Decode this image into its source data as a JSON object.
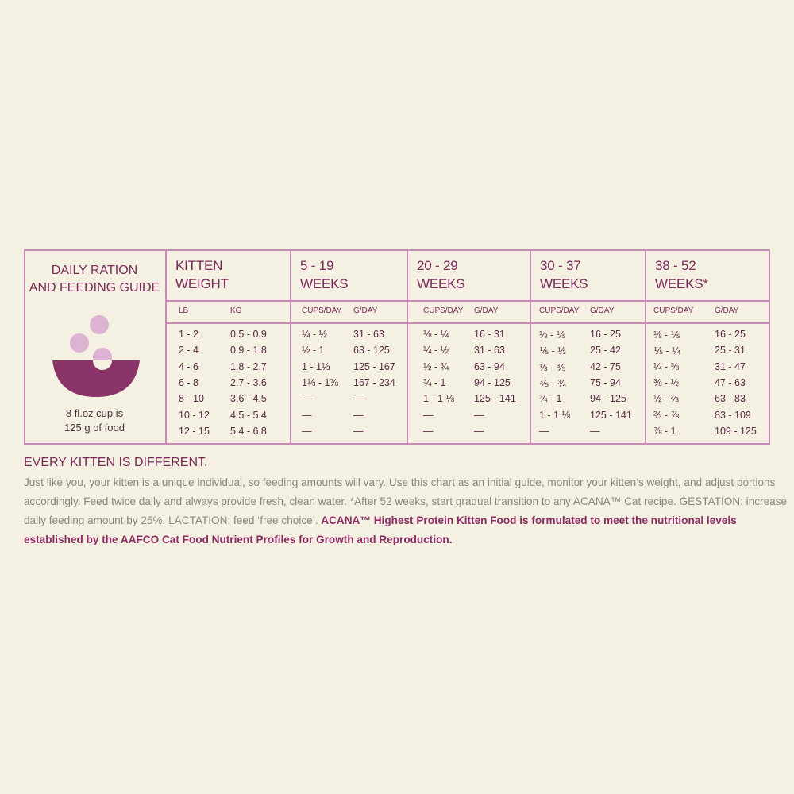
{
  "guide": {
    "title": [
      "DAILY RATION",
      "AND FEEDING GUIDE"
    ],
    "cup_note": [
      "8 fl.oz cup is",
      "125 g of food"
    ]
  },
  "groups": [
    {
      "title": [
        "KITTEN",
        "WEIGHT"
      ],
      "subheaders": [
        "LB",
        "KG"
      ],
      "columns": [
        [
          "1 - 2",
          "2 - 4",
          "4 - 6",
          "6 - 8",
          "8 - 10",
          "10 - 12",
          "12 - 15"
        ],
        [
          "0.5 - 0.9",
          "0.9 - 1.8",
          "1.8 - 2.7",
          "2.7 - 3.6",
          "3.6 - 4.5",
          "4.5 - 5.4",
          "5.4 - 6.8"
        ]
      ]
    },
    {
      "title": [
        "5 - 19",
        "WEEKS"
      ],
      "subheaders": [
        "CUPS/DAY",
        "G/DAY"
      ],
      "columns": [
        [
          "¼ - ½",
          "½ - 1",
          "1 - 1⅓",
          "1⅓ - 1⅞",
          "—",
          "—",
          "—"
        ],
        [
          "31 - 63",
          "63 - 125",
          "125 - 167",
          "167 - 234",
          "—",
          "—",
          "—"
        ]
      ]
    },
    {
      "title": [
        "20 - 29",
        "WEEKS"
      ],
      "subheaders": [
        "CUPS/DAY",
        "G/DAY"
      ],
      "columns": [
        [
          "⅛ - ¼",
          "¼ - ½",
          "½ - ¾",
          "¾ - 1",
          "1 - 1 ⅛",
          "—",
          "—"
        ],
        [
          "16 - 31",
          "31 - 63",
          "63 - 94",
          "94 - 125",
          "125 - 141",
          "—",
          "—"
        ]
      ]
    },
    {
      "title": [
        "30 - 37",
        "WEEKS"
      ],
      "subheaders": [
        "CUPS/DAY",
        "G/DAY"
      ],
      "columns": [
        [
          "⅛ - ⅕",
          "⅕ - ⅓",
          "⅓ - ⅗",
          "⅗ - ¾",
          "¾ - 1",
          "1 - 1 ⅛",
          "—"
        ],
        [
          "16 - 25",
          "25 - 42",
          "42 - 75",
          "75 - 94",
          "94 - 125",
          "125 - 141",
          "—"
        ]
      ]
    },
    {
      "title": [
        "38 - 52",
        "WEEKS*"
      ],
      "subheaders": [
        "CUPS/DAY",
        "G/DAY"
      ],
      "columns": [
        [
          "⅛ - ⅕",
          "⅕ - ¼",
          "¼ - ⅜",
          "⅜ - ½",
          "½ - ⅔",
          "⅔ - ⅞",
          "⅞ - 1"
        ],
        [
          "16 - 25",
          "25 - 31",
          "31 - 47",
          "47 - 63",
          "63 - 83",
          "83 - 109",
          "109 - 125"
        ]
      ]
    }
  ],
  "note": {
    "heading": "EVERY KITTEN IS DIFFERENT.",
    "body": "Just like you, your kitten is a unique individual, so feeding amounts will vary. Use this chart as an initial guide, monitor your kitten’s weight, and adjust portions accordingly. Feed twice daily and always provide fresh, clean water. *After 52 weeks, start gradual transition to any ACANA™ Cat recipe. GESTATION: increase daily feeding amount by 25%. LACTATION: feed ‘free choice’.",
    "emphasis": "ACANA™ Highest Protein Kitten Food is formulated to meet the nutritional levels established by the AAFCO Cat Food Nutrient Profiles for Growth and Reproduction."
  }
}
